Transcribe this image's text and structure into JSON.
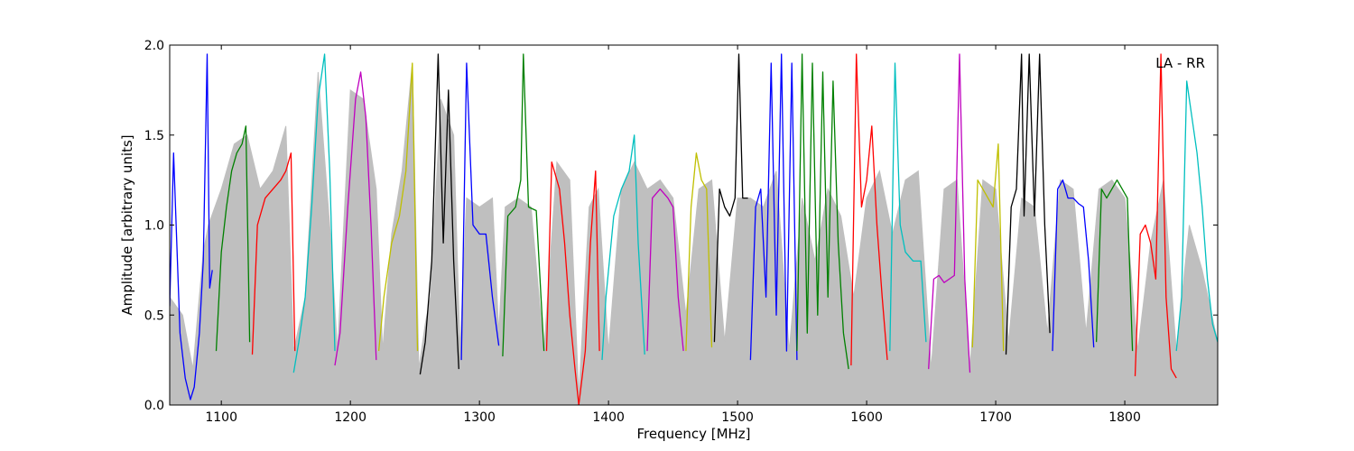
{
  "chart_data": {
    "type": "line",
    "title": "",
    "xlabel": "Frequency [MHz]",
    "ylabel": "Amplitude [arbitrary units]",
    "annotation": "LA - RR",
    "xlim": [
      1060,
      1872
    ],
    "ylim": [
      0.0,
      2.0
    ],
    "xticks": [
      1100,
      1200,
      1300,
      1400,
      1500,
      1600,
      1700,
      1800
    ],
    "yticks": [
      0.0,
      0.5,
      1.0,
      1.5,
      2.0
    ],
    "xtick_labels": [
      "1100",
      "1200",
      "1300",
      "1400",
      "1500",
      "1600",
      "1700",
      "1800"
    ],
    "ytick_labels": [
      "0.0",
      "0.5",
      "1.0",
      "1.5",
      "2.0"
    ],
    "grid": false,
    "background": {
      "color": "#bfbfbf",
      "x": [
        1060,
        1070,
        1078,
        1086,
        1090,
        1100,
        1110,
        1120,
        1130,
        1140,
        1150,
        1156,
        1165,
        1175,
        1185,
        1190,
        1200,
        1210,
        1220,
        1225,
        1232,
        1240,
        1248,
        1253,
        1258,
        1262,
        1270,
        1280,
        1285,
        1290,
        1300,
        1310,
        1315,
        1320,
        1330,
        1340,
        1350,
        1360,
        1370,
        1377,
        1385,
        1392,
        1400,
        1410,
        1420,
        1430,
        1440,
        1450,
        1460,
        1470,
        1480,
        1490,
        1500,
        1510,
        1520,
        1530,
        1540,
        1550,
        1560,
        1570,
        1580,
        1590,
        1600,
        1610,
        1620,
        1630,
        1640,
        1650,
        1660,
        1670,
        1680,
        1690,
        1700,
        1710,
        1720,
        1730,
        1740,
        1750,
        1760,
        1770,
        1780,
        1790,
        1800,
        1810,
        1820,
        1830,
        1840,
        1850,
        1860,
        1872
      ],
      "y": [
        0.6,
        0.5,
        0.2,
        0.85,
        1.0,
        1.2,
        1.45,
        1.5,
        1.2,
        1.3,
        1.55,
        0.3,
        0.6,
        1.85,
        0.9,
        0.3,
        1.75,
        1.7,
        1.2,
        0.3,
        0.95,
        1.3,
        1.9,
        0.2,
        0.45,
        0.6,
        1.7,
        1.5,
        0.3,
        1.15,
        1.1,
        1.15,
        0.4,
        1.1,
        1.15,
        1.1,
        0.3,
        1.35,
        1.25,
        0.05,
        1.1,
        1.2,
        0.3,
        1.2,
        1.35,
        1.2,
        1.25,
        1.15,
        0.5,
        1.2,
        1.25,
        0.35,
        1.15,
        1.15,
        1.1,
        1.3,
        0.3,
        1.15,
        0.8,
        1.2,
        1.05,
        0.6,
        1.15,
        1.3,
        0.95,
        1.25,
        1.3,
        0.2,
        1.2,
        1.25,
        0.2,
        1.25,
        1.2,
        0.35,
        1.15,
        1.1,
        0.4,
        1.25,
        1.2,
        0.4,
        1.2,
        1.25,
        1.15,
        0.3,
        0.9,
        1.25,
        0.3,
        1.0,
        0.75,
        0.35
      ]
    },
    "series": [
      {
        "color": "#0000ff",
        "x": [
          1060,
          1063,
          1068,
          1072,
          1076,
          1079,
          1083,
          1086,
          1089,
          1091,
          1093
        ],
        "y": [
          0.55,
          1.4,
          0.4,
          0.15,
          0.03,
          0.1,
          0.4,
          0.8,
          1.95,
          0.65,
          0.75
        ]
      },
      {
        "color": "#008000",
        "x": [
          1096,
          1100,
          1104,
          1108,
          1112,
          1116,
          1119,
          1122
        ],
        "y": [
          0.3,
          0.85,
          1.1,
          1.3,
          1.4,
          1.45,
          1.55,
          0.35
        ]
      },
      {
        "color": "#ff0000",
        "x": [
          1124,
          1128,
          1134,
          1140,
          1146,
          1150,
          1154,
          1157
        ],
        "y": [
          0.28,
          1.0,
          1.15,
          1.2,
          1.25,
          1.3,
          1.4,
          0.3
        ]
      },
      {
        "color": "#00bfbf",
        "x": [
          1156,
          1160,
          1165,
          1170,
          1175,
          1180,
          1184,
          1188
        ],
        "y": [
          0.18,
          0.35,
          0.6,
          1.1,
          1.7,
          1.95,
          1.3,
          0.3
        ]
      },
      {
        "color": "#bf00bf",
        "x": [
          1188,
          1192,
          1198,
          1204,
          1208,
          1212,
          1216,
          1220
        ],
        "y": [
          0.22,
          0.4,
          1.1,
          1.7,
          1.85,
          1.6,
          1.0,
          0.25
        ]
      },
      {
        "color": "#bfbf00",
        "x": [
          1222,
          1226,
          1232,
          1238,
          1243,
          1248,
          1252
        ],
        "y": [
          0.3,
          0.6,
          0.9,
          1.05,
          1.3,
          1.9,
          0.3
        ]
      },
      {
        "color": "#000000",
        "x": [
          1254,
          1258,
          1263,
          1268,
          1272,
          1276,
          1280,
          1284
        ],
        "y": [
          0.17,
          0.35,
          0.8,
          1.95,
          0.9,
          1.75,
          0.8,
          0.2
        ]
      },
      {
        "color": "#0000ff",
        "x": [
          1286,
          1290,
          1295,
          1300,
          1305,
          1310,
          1315
        ],
        "y": [
          0.25,
          1.9,
          1.0,
          0.95,
          0.95,
          0.6,
          0.33
        ]
      },
      {
        "color": "#008000",
        "x": [
          1318,
          1322,
          1328,
          1332,
          1334,
          1338,
          1344,
          1350
        ],
        "y": [
          0.27,
          1.05,
          1.1,
          1.25,
          1.95,
          1.1,
          1.08,
          0.3
        ]
      },
      {
        "color": "#ff0000",
        "x": [
          1352,
          1356,
          1362,
          1366,
          1370,
          1374,
          1377,
          1382,
          1386,
          1390,
          1393
        ],
        "y": [
          0.3,
          1.35,
          1.2,
          0.9,
          0.5,
          0.2,
          0.0,
          0.3,
          0.9,
          1.3,
          0.3
        ]
      },
      {
        "color": "#00bfbf",
        "x": [
          1395,
          1398,
          1404,
          1410,
          1416,
          1420,
          1423,
          1428
        ],
        "y": [
          0.25,
          0.6,
          1.05,
          1.2,
          1.3,
          1.5,
          0.9,
          0.28
        ]
      },
      {
        "color": "#bf00bf",
        "x": [
          1430,
          1434,
          1440,
          1446,
          1450,
          1454,
          1458
        ],
        "y": [
          0.3,
          1.15,
          1.2,
          1.15,
          1.1,
          0.6,
          0.3
        ]
      },
      {
        "color": "#bfbf00",
        "x": [
          1460,
          1464,
          1468,
          1472,
          1476,
          1480
        ],
        "y": [
          0.3,
          1.1,
          1.4,
          1.25,
          1.2,
          0.32
        ]
      },
      {
        "color": "#000000",
        "x": [
          1482,
          1486,
          1490,
          1494,
          1498,
          1501,
          1504,
          1508
        ],
        "y": [
          0.35,
          1.2,
          1.1,
          1.05,
          1.15,
          1.95,
          1.15,
          1.15
        ]
      },
      {
        "color": "#0000ff",
        "x": [
          1510,
          1514,
          1518,
          1522,
          1526,
          1530,
          1534,
          1538,
          1542,
          1546
        ],
        "y": [
          0.25,
          1.1,
          1.2,
          0.6,
          1.9,
          0.5,
          1.95,
          0.3,
          1.9,
          0.25
        ]
      },
      {
        "color": "#008000",
        "x": [
          1546,
          1550,
          1554,
          1558,
          1562,
          1566,
          1570,
          1574,
          1578,
          1582,
          1586
        ],
        "y": [
          0.3,
          1.95,
          0.4,
          1.9,
          0.5,
          1.85,
          0.6,
          1.8,
          0.9,
          0.4,
          0.2
        ]
      },
      {
        "color": "#ff0000",
        "x": [
          1588,
          1592,
          1596,
          1600,
          1604,
          1608,
          1612,
          1616
        ],
        "y": [
          0.22,
          1.95,
          1.1,
          1.25,
          1.55,
          1.0,
          0.6,
          0.25
        ]
      },
      {
        "color": "#00bfbf",
        "x": [
          1618,
          1622,
          1626,
          1630,
          1636,
          1642,
          1646
        ],
        "y": [
          0.3,
          1.9,
          1.0,
          0.85,
          0.8,
          0.8,
          0.35
        ]
      },
      {
        "color": "#bf00bf",
        "x": [
          1648,
          1652,
          1656,
          1660,
          1664,
          1668,
          1672,
          1676,
          1680
        ],
        "y": [
          0.2,
          0.7,
          0.72,
          0.68,
          0.7,
          0.72,
          1.95,
          0.7,
          0.18
        ]
      },
      {
        "color": "#bfbf00",
        "x": [
          1682,
          1686,
          1690,
          1694,
          1698,
          1702,
          1706
        ],
        "y": [
          0.32,
          1.25,
          1.2,
          1.15,
          1.1,
          1.45,
          0.3
        ]
      },
      {
        "color": "#000000",
        "x": [
          1708,
          1712,
          1716,
          1720,
          1722,
          1726,
          1730,
          1734,
          1738,
          1742
        ],
        "y": [
          0.28,
          1.1,
          1.2,
          1.95,
          1.05,
          1.95,
          1.05,
          1.95,
          1.0,
          0.4
        ]
      },
      {
        "color": "#0000ff",
        "x": [
          1744,
          1748,
          1752,
          1756,
          1760,
          1764,
          1768,
          1772,
          1776
        ],
        "y": [
          0.3,
          1.2,
          1.25,
          1.15,
          1.15,
          1.12,
          1.1,
          0.8,
          0.32
        ]
      },
      {
        "color": "#008000",
        "x": [
          1778,
          1782,
          1786,
          1790,
          1794,
          1798,
          1802,
          1806
        ],
        "y": [
          0.35,
          1.2,
          1.15,
          1.2,
          1.25,
          1.2,
          1.15,
          0.3
        ]
      },
      {
        "color": "#ff0000",
        "x": [
          1808,
          1812,
          1816,
          1820,
          1824,
          1828,
          1832,
          1836,
          1840
        ],
        "y": [
          0.16,
          0.95,
          1.0,
          0.9,
          0.7,
          1.95,
          0.6,
          0.2,
          0.15
        ]
      },
      {
        "color": "#00bfbf",
        "x": [
          1840,
          1844,
          1848,
          1852,
          1856,
          1860,
          1864,
          1868,
          1872
        ],
        "y": [
          0.3,
          0.6,
          1.8,
          1.6,
          1.4,
          1.1,
          0.7,
          0.45,
          0.35
        ]
      }
    ]
  }
}
